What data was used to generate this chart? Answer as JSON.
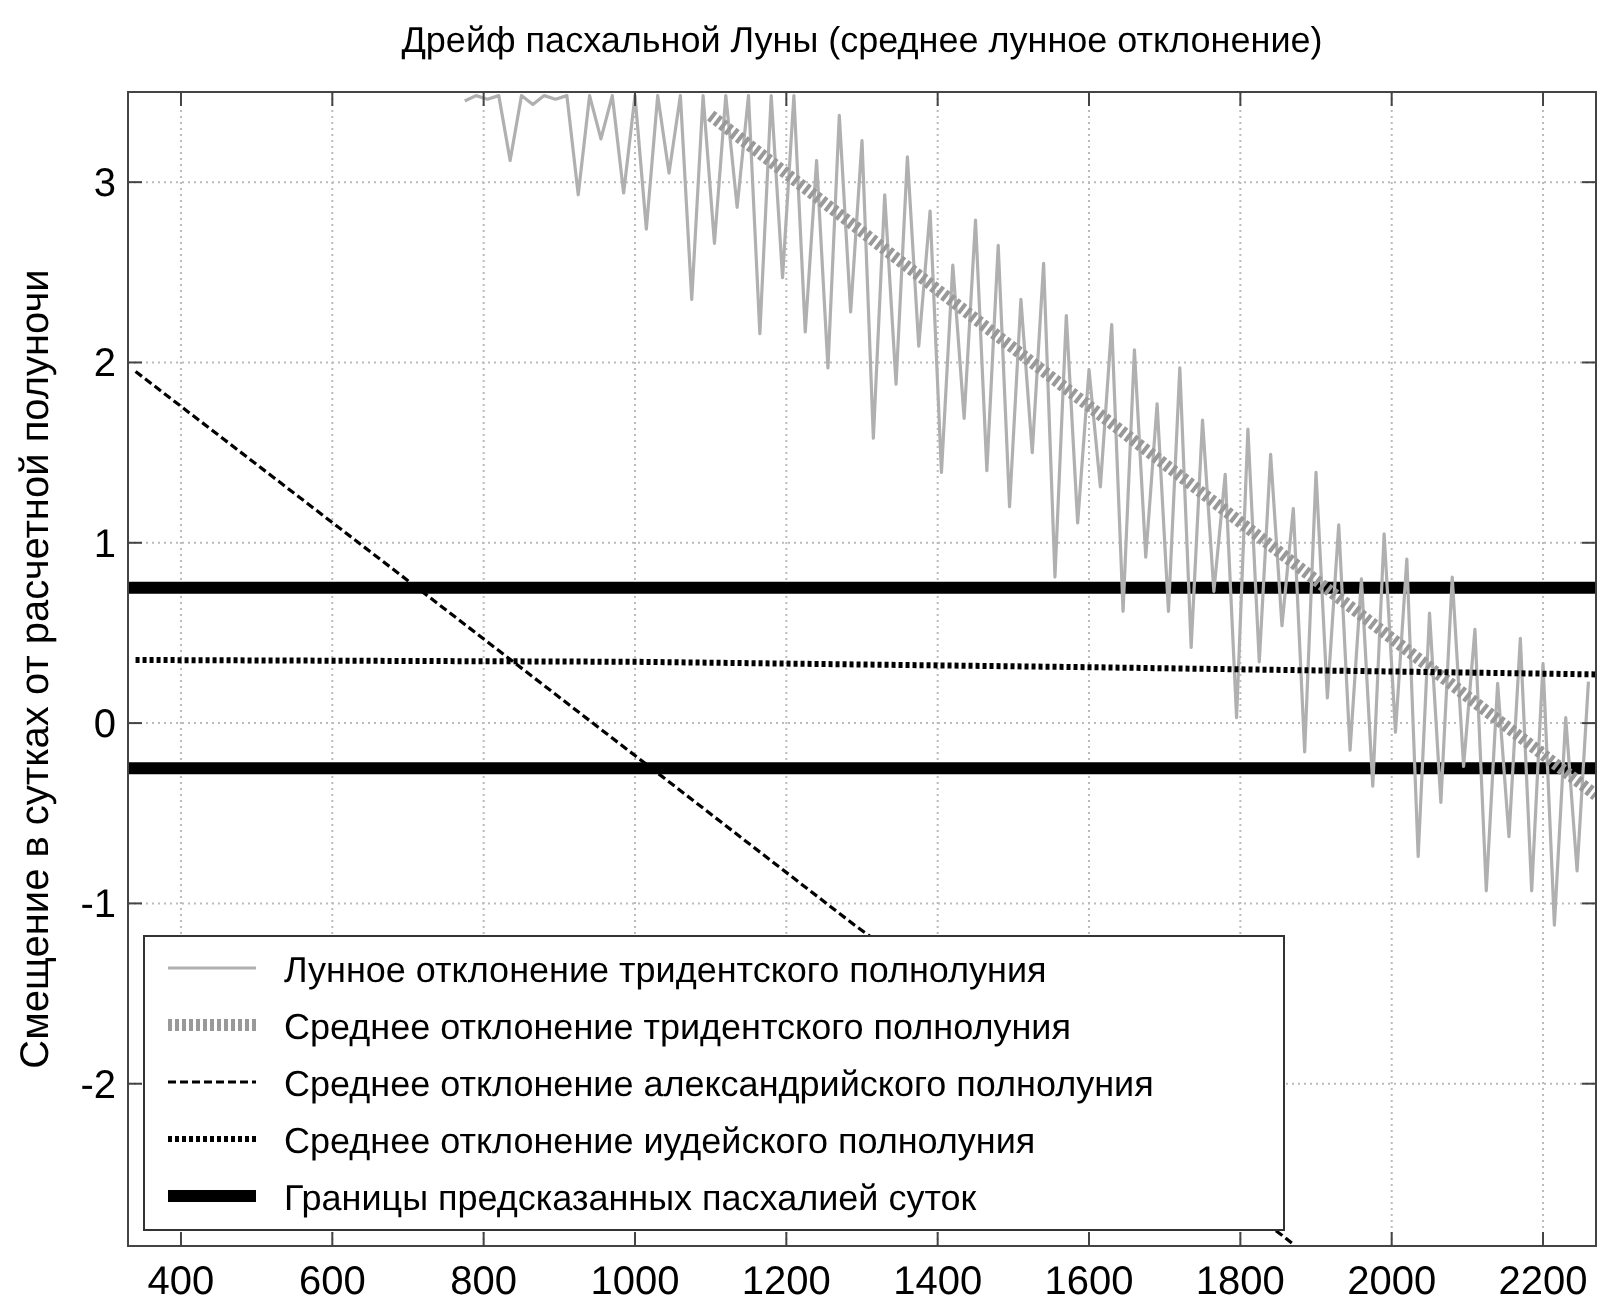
{
  "chart_data": {
    "type": "line",
    "title": "Дрейф пасхальной Луны (среднее лунное отклонение)",
    "ylabel": "Смещение в сутках от расчетной полуночи",
    "xlim": [
      330,
      2270
    ],
    "ylim": [
      -2.9,
      3.5
    ],
    "xticks": [
      400,
      600,
      800,
      1000,
      1200,
      1400,
      1600,
      1800,
      2000,
      2200
    ],
    "yticks": [
      -2,
      -1,
      0,
      1,
      2,
      3
    ],
    "grid": true,
    "legend": "bottom left",
    "series": [
      {
        "name": "Лунное отклонение тридентского полнолуния",
        "color": "#b0b0b0",
        "line_style": "solid",
        "x": [
          775,
          790,
          805,
          820,
          835,
          850,
          865,
          880,
          895,
          910,
          925,
          940,
          955,
          970,
          985,
          1000,
          1015,
          1030,
          1045,
          1060,
          1075,
          1090,
          1105,
          1120,
          1135,
          1150,
          1165,
          1180,
          1195,
          1210,
          1225,
          1240,
          1255,
          1270,
          1285,
          1300,
          1315,
          1330,
          1345,
          1360,
          1375,
          1390,
          1405,
          1420,
          1435,
          1450,
          1465,
          1480,
          1495,
          1510,
          1525,
          1540,
          1555,
          1570,
          1585,
          1600,
          1615,
          1630,
          1645,
          1660,
          1675,
          1690,
          1705,
          1720,
          1735,
          1750,
          1765,
          1780,
          1795,
          1810,
          1825,
          1840,
          1855,
          1870,
          1885,
          1900,
          1915,
          1930,
          1945,
          1960,
          1975,
          1990,
          2005,
          2020,
          2035,
          2050,
          2065,
          2080,
          2095,
          2110,
          2125,
          2140,
          2155,
          2170,
          2185,
          2200,
          2215,
          2230,
          2245,
          2260
        ],
        "values": [
          3.45,
          3.48,
          3.46,
          3.48,
          3.12,
          3.48,
          3.43,
          3.48,
          3.46,
          3.48,
          2.93,
          3.48,
          3.24,
          3.48,
          2.94,
          3.48,
          2.74,
          3.48,
          3.05,
          3.48,
          2.35,
          3.48,
          2.66,
          3.48,
          2.86,
          3.48,
          2.16,
          3.48,
          2.47,
          3.48,
          2.17,
          3.12,
          1.97,
          3.37,
          2.28,
          3.23,
          1.58,
          2.93,
          1.88,
          3.14,
          2.09,
          2.84,
          1.39,
          2.54,
          1.69,
          2.79,
          1.4,
          2.65,
          1.2,
          2.35,
          1.5,
          2.55,
          0.81,
          2.26,
          1.11,
          1.96,
          1.31,
          2.21,
          0.62,
          2.07,
          0.92,
          1.77,
          0.62,
          1.97,
          0.42,
          1.68,
          0.73,
          1.38,
          0.03,
          1.63,
          0.34,
          1.49,
          0.54,
          1.19,
          -0.16,
          1.39,
          0.14,
          1.1,
          -0.15,
          0.8,
          -0.35,
          1.05,
          -0.05,
          0.91,
          -0.74,
          0.61,
          -0.44,
          0.81,
          -0.24,
          0.52,
          -0.93,
          0.22,
          -0.63,
          0.47,
          -0.93,
          0.33,
          -1.12,
          0.03,
          -0.82,
          0.23
        ]
      },
      {
        "name": "Среднее отклонение тридентского полнолуния",
        "color": "#999999",
        "line_style": "dotted",
        "x": [
          1100,
          1500,
          2000,
          2270
        ],
        "values": [
          3.37,
          2.08,
          0.47,
          -0.4
        ]
      },
      {
        "name": "Среднее отклонение александрийского полнолуния",
        "color": "#000000",
        "line_style": "dashed",
        "x": [
          340,
          700,
          1000,
          1290,
          1855,
          1870
        ],
        "values": [
          1.95,
          0.79,
          -0.18,
          -1.12,
          -2.84,
          -2.89
        ]
      },
      {
        "name": "Среднее отклонение иудейского полнолуния",
        "color": "#000000",
        "line_style": "dotted",
        "x": [
          340,
          1000,
          1600,
          2270
        ],
        "values": [
          0.35,
          0.34,
          0.31,
          0.27
        ]
      }
    ],
    "ref_lines": [
      {
        "axis": "y",
        "value": 0.75,
        "label": "Границы предсказанных пасхалией суток",
        "color": "#000000"
      },
      {
        "axis": "y",
        "value": -0.25,
        "color": "#000000"
      }
    ]
  }
}
